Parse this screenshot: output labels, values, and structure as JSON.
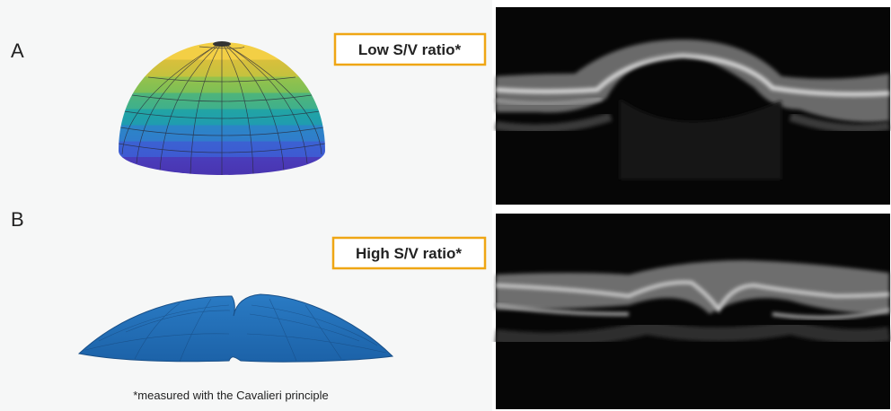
{
  "panels": [
    {
      "label": "A",
      "ratio_label": "Low S/V ratio*"
    },
    {
      "label": "B",
      "ratio_label": "High S/V ratio*"
    }
  ],
  "footnote": "*measured with the Cavalieri principle"
}
